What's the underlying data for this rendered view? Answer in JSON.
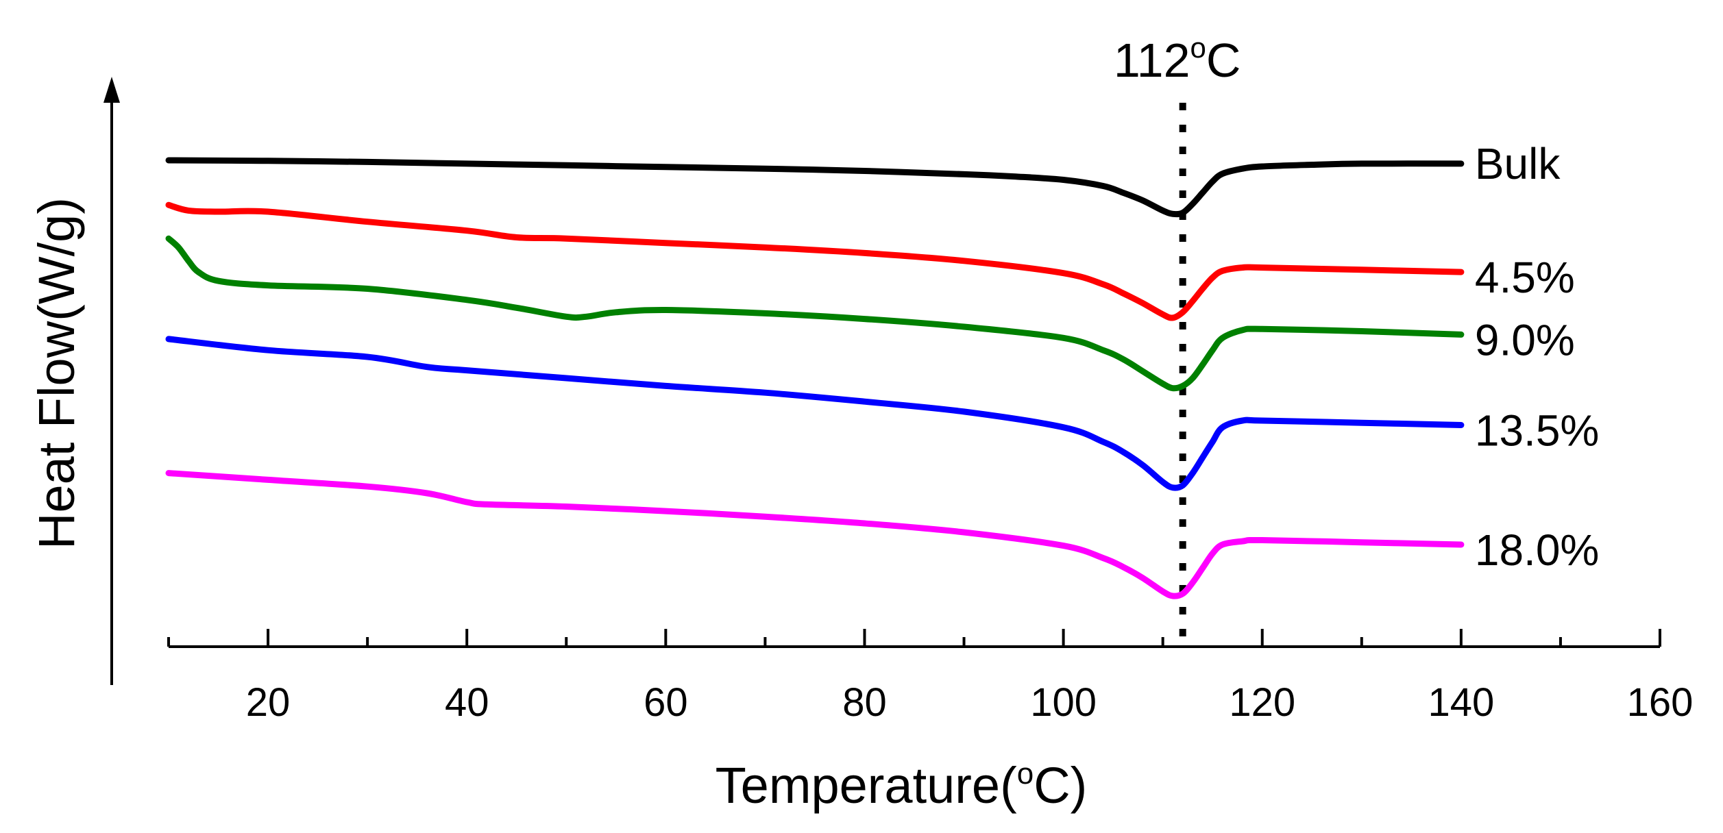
{
  "chart_data": {
    "type": "line",
    "title": "",
    "xlabel": "Temperature(",
    "xlabel_sup": "o",
    "xlabel_end": "C)",
    "ylabel": "Heat Flow(W/g)",
    "xlim": [
      10,
      160
    ],
    "x_ticks": [
      20,
      40,
      60,
      80,
      100,
      120,
      140,
      160
    ],
    "x_tick_labels": [
      "20",
      "40",
      "60",
      "80",
      "100",
      "120",
      "140",
      "160"
    ],
    "y_ticks_shown": false,
    "grid": false,
    "annotation": {
      "x": 112,
      "label_main": "112",
      "label_sup": "o",
      "label_end": "C",
      "style": "dotted-vertical"
    },
    "series": [
      {
        "name": "Bulk",
        "color": "#000000",
        "x": [
          10,
          20,
          30,
          40,
          50,
          60,
          70,
          80,
          90,
          95,
          100,
          104,
          106,
          108,
          110,
          111,
          112,
          113,
          114,
          115,
          116,
          118,
          120,
          125,
          130,
          140
        ],
        "y": [
          0,
          -0.05,
          -0.15,
          -0.3,
          -0.45,
          -0.6,
          -0.75,
          -0.95,
          -1.25,
          -1.45,
          -1.75,
          -2.3,
          -2.9,
          -3.6,
          -4.5,
          -4.8,
          -4.7,
          -3.9,
          -2.9,
          -1.9,
          -1.2,
          -0.75,
          -0.55,
          -0.4,
          -0.3,
          -0.3
        ]
      },
      {
        "name": "4.5%",
        "color": "#ff0000",
        "x": [
          10,
          12,
          15,
          20,
          30,
          40,
          45,
          50,
          60,
          70,
          80,
          90,
          100,
          104,
          106,
          108,
          110,
          111,
          112,
          113,
          114,
          115,
          116,
          118,
          120,
          130,
          140
        ],
        "y": [
          -4.0,
          -4.5,
          -4.6,
          -4.6,
          -5.5,
          -6.3,
          -6.9,
          -7.0,
          -7.4,
          -7.8,
          -8.3,
          -9.0,
          -10.1,
          -11.1,
          -11.9,
          -12.8,
          -13.8,
          -14.1,
          -13.6,
          -12.6,
          -11.5,
          -10.5,
          -9.9,
          -9.6,
          -9.6,
          -9.8,
          -10.0
        ]
      },
      {
        "name": "9.0%",
        "color": "#008000",
        "x": [
          10,
          11,
          12,
          13,
          15,
          20,
          30,
          40,
          45,
          50,
          52,
          55,
          60,
          70,
          80,
          90,
          100,
          104,
          106,
          108,
          110,
          111,
          112,
          113,
          114,
          115,
          116,
          118,
          120,
          130,
          140
        ],
        "y": [
          -7.0,
          -7.8,
          -9.0,
          -10.0,
          -10.8,
          -11.2,
          -11.5,
          -12.5,
          -13.2,
          -14.0,
          -14.0,
          -13.6,
          -13.4,
          -13.7,
          -14.2,
          -14.9,
          -15.9,
          -17.0,
          -17.8,
          -18.9,
          -20.0,
          -20.4,
          -20.2,
          -19.5,
          -18.3,
          -17.0,
          -15.9,
          -15.2,
          -15.1,
          -15.3,
          -15.6
        ]
      },
      {
        "name": "13.5%",
        "color": "#0000ff",
        "x": [
          10,
          20,
          30,
          36,
          40,
          50,
          60,
          70,
          80,
          90,
          100,
          104,
          106,
          108,
          110,
          111,
          112,
          113,
          114,
          115,
          116,
          118,
          120,
          130,
          140
        ],
        "y": [
          -16.0,
          -17.0,
          -17.6,
          -18.5,
          -18.8,
          -19.5,
          -20.2,
          -20.8,
          -21.6,
          -22.5,
          -23.9,
          -25.2,
          -26.1,
          -27.3,
          -28.8,
          -29.3,
          -29.1,
          -28.0,
          -26.6,
          -25.2,
          -23.9,
          -23.3,
          -23.3,
          -23.5,
          -23.7
        ]
      },
      {
        "name": "18.0%",
        "color": "#ff00ff",
        "x": [
          10,
          20,
          30,
          36,
          40,
          42,
          50,
          60,
          70,
          80,
          90,
          100,
          104,
          106,
          108,
          110,
          111,
          112,
          113,
          114,
          115,
          116,
          118,
          120,
          130,
          140
        ],
        "y": [
          -28.0,
          -28.6,
          -29.2,
          -29.8,
          -30.6,
          -30.8,
          -31.0,
          -31.4,
          -31.9,
          -32.5,
          -33.3,
          -34.5,
          -35.6,
          -36.4,
          -37.4,
          -38.6,
          -39.0,
          -38.8,
          -37.8,
          -36.5,
          -35.2,
          -34.4,
          -34.1,
          -34.0,
          -34.2,
          -34.4
        ]
      }
    ]
  }
}
